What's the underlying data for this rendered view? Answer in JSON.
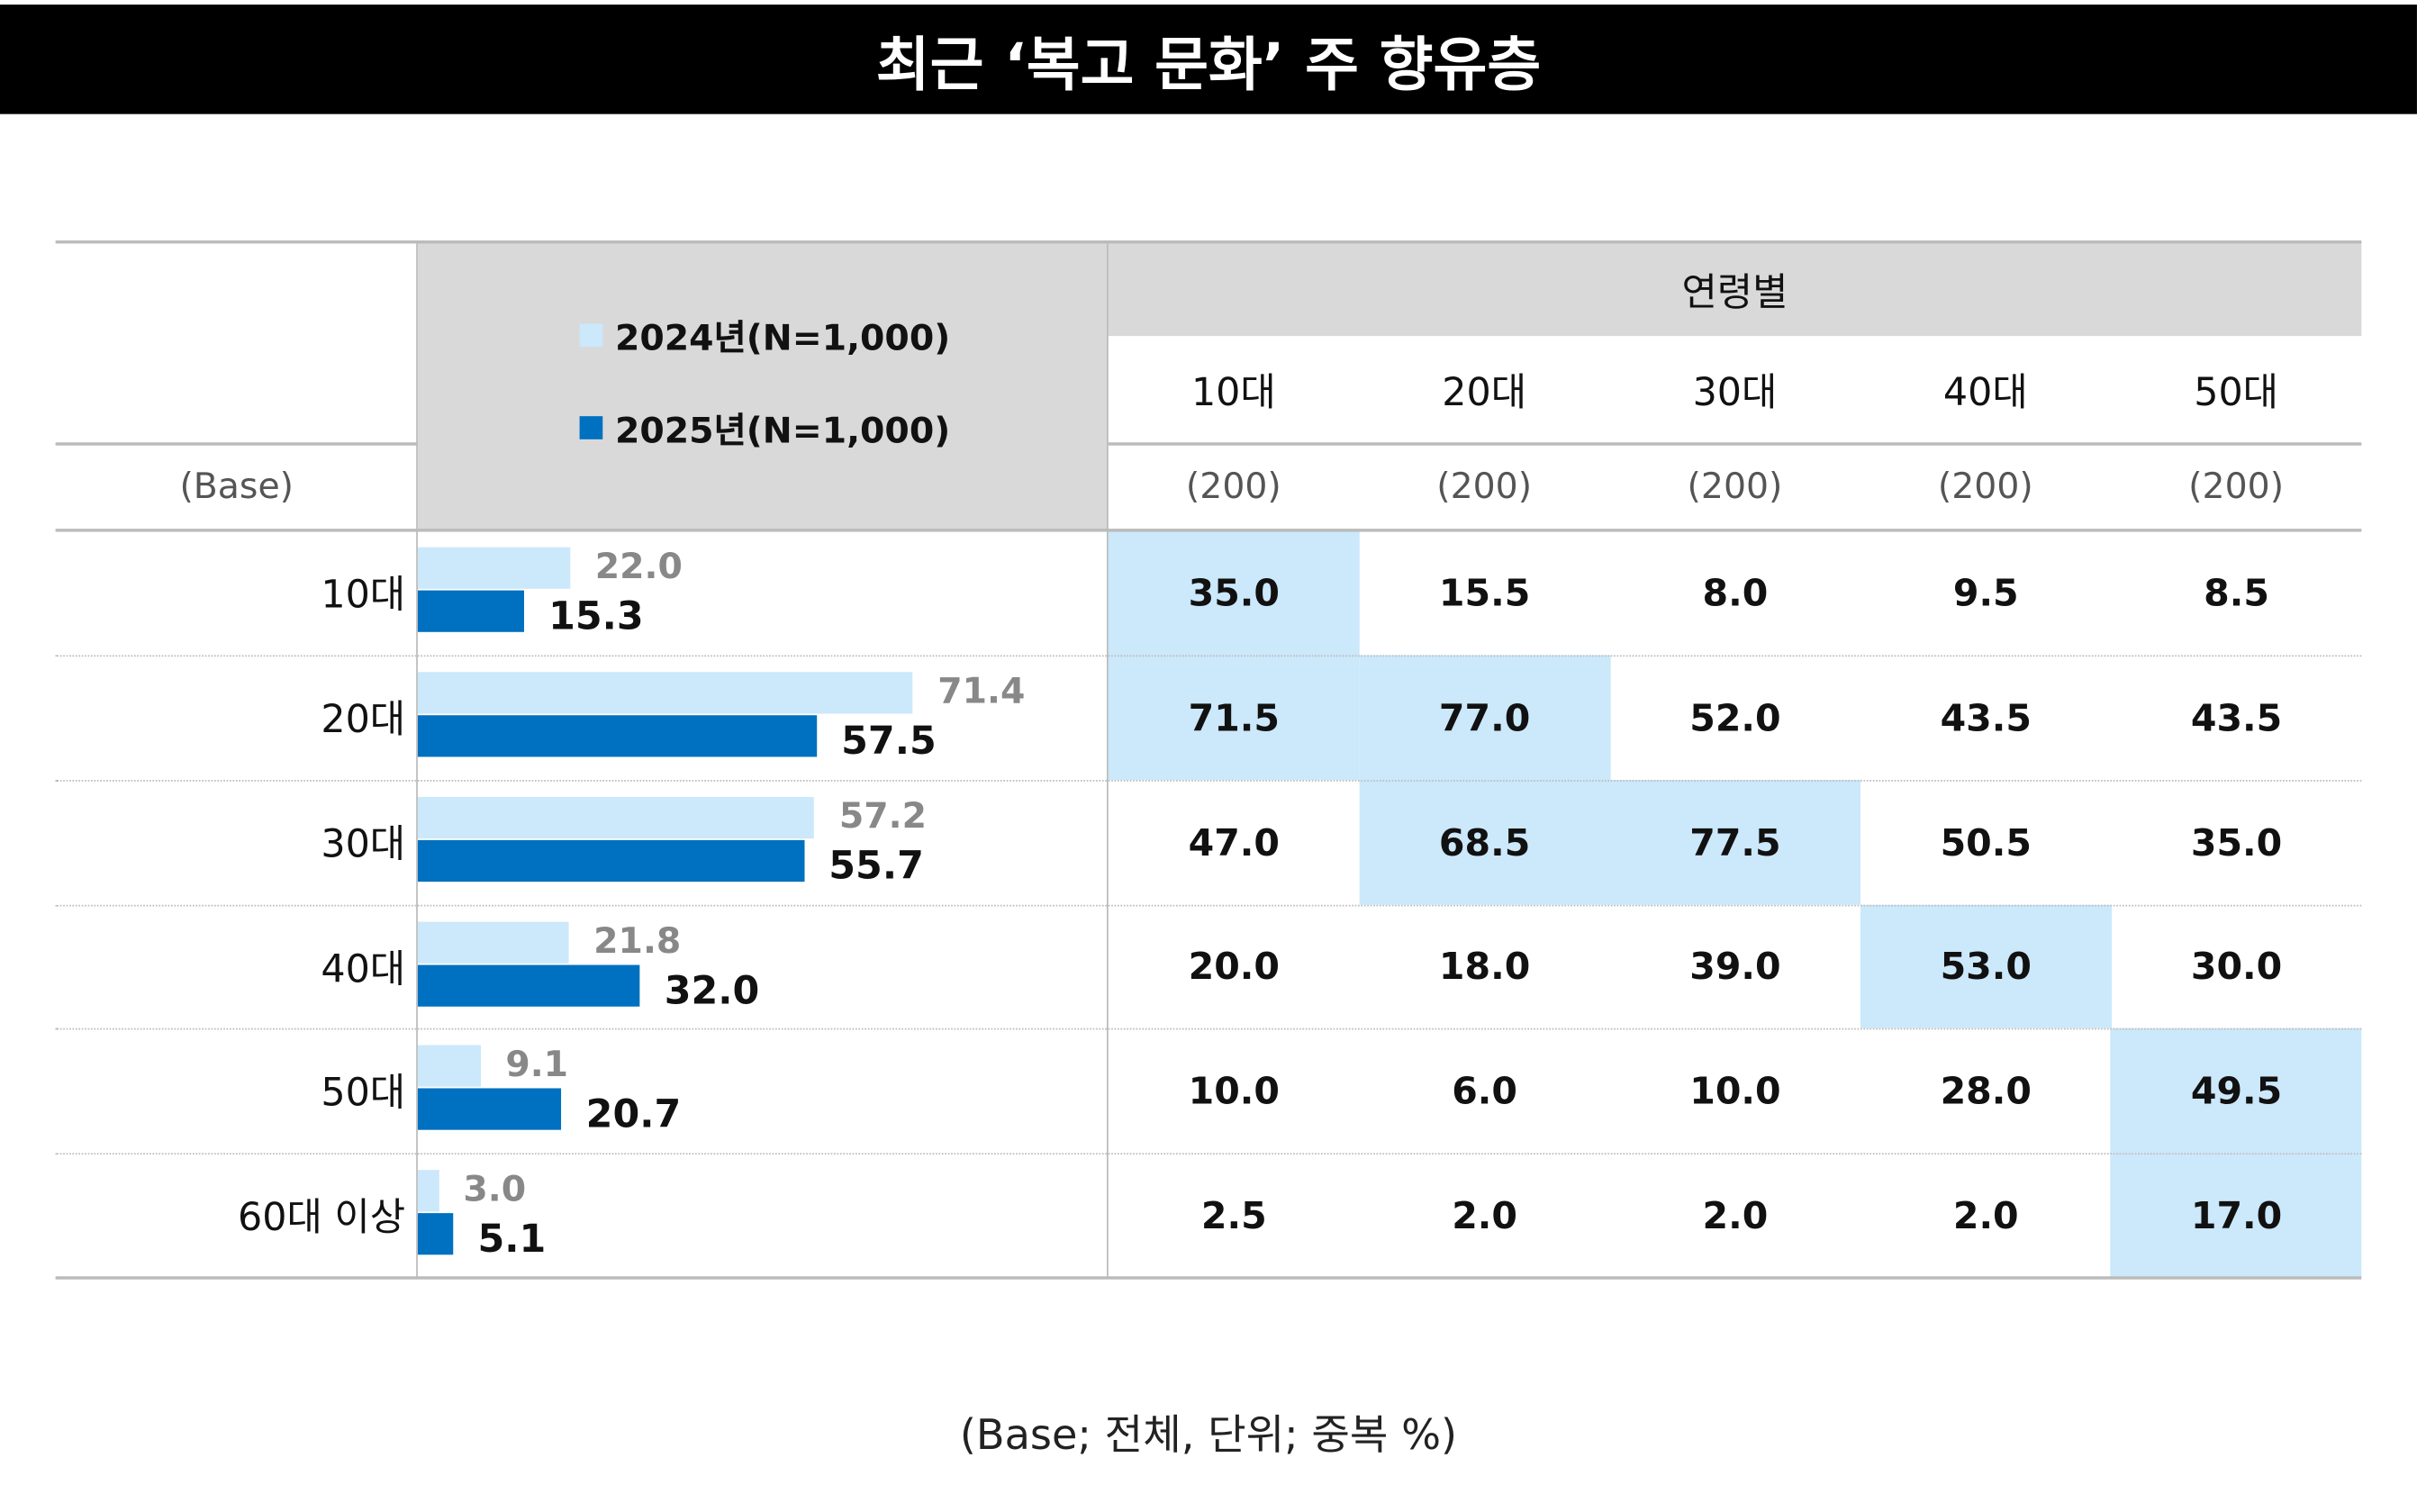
{
  "title": "최근 ‘복고 문화’ 주 향유층",
  "colors": {
    "y2024": "#cce8fb",
    "y2025": "#0070c0",
    "highlight": "#cce8fb"
  },
  "chart_data": {
    "type": "bar",
    "orientation": "horizontal",
    "categories": [
      "10대",
      "20대",
      "30대",
      "40대",
      "50대",
      "60대 이상"
    ],
    "series": [
      {
        "name": "2024년(N=1,000)",
        "values": [
          22.0,
          71.4,
          57.2,
          21.8,
          9.1,
          3.0
        ]
      },
      {
        "name": "2025년(N=1,000)",
        "values": [
          15.3,
          57.5,
          55.7,
          32.0,
          20.7,
          5.1
        ]
      }
    ],
    "xlim": [
      0,
      100
    ]
  },
  "table": {
    "base_label": "(Base)",
    "group_header": "연령별",
    "columns": [
      "10대",
      "20대",
      "30대",
      "40대",
      "50대"
    ],
    "bases": [
      "(200)",
      "(200)",
      "(200)",
      "(200)",
      "(200)"
    ],
    "rows": [
      [
        "35.0",
        "15.5",
        "8.0",
        "9.5",
        "8.5"
      ],
      [
        "71.5",
        "77.0",
        "52.0",
        "43.5",
        "43.5"
      ],
      [
        "47.0",
        "68.5",
        "77.5",
        "50.5",
        "35.0"
      ],
      [
        "20.0",
        "18.0",
        "39.0",
        "53.0",
        "30.0"
      ],
      [
        "10.0",
        "6.0",
        "10.0",
        "28.0",
        "49.5"
      ],
      [
        "2.5",
        "2.0",
        "2.0",
        "2.0",
        "17.0"
      ]
    ],
    "highlighted": [
      [
        0,
        0
      ],
      [
        1,
        0
      ],
      [
        1,
        1
      ],
      [
        2,
        1
      ],
      [
        2,
        2
      ],
      [
        3,
        3
      ],
      [
        4,
        4
      ],
      [
        5,
        4
      ]
    ]
  },
  "footnote": "(Base; 전체, 단위; 중복 %)"
}
